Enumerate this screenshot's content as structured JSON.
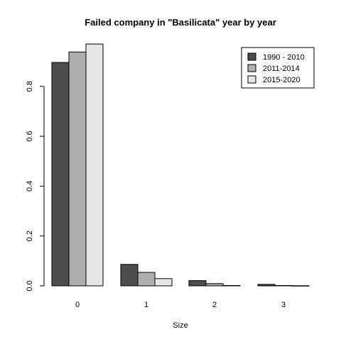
{
  "chart_data": {
    "type": "bar",
    "title": "Failed company in \"Basilicata\" year by year",
    "xlabel": "Size",
    "ylabel": "",
    "categories": [
      "0",
      "1",
      "2",
      "3"
    ],
    "yticks": [
      "0.0",
      "0.2",
      "0.4",
      "0.6",
      "0.8"
    ],
    "ylim": [
      0,
      0.97
    ],
    "grid": false,
    "legend_position": "top-right",
    "series": [
      {
        "name": "1990 - 2010",
        "color": "#4d4d4d",
        "values": [
          0.896,
          0.086,
          0.021,
          0.006
        ]
      },
      {
        "name": "2011-2014",
        "color": "#aeaeae",
        "values": [
          0.938,
          0.054,
          0.009,
          0.0015
        ]
      },
      {
        "name": "2015-2020",
        "color": "#e6e6e6",
        "values": [
          0.97,
          0.029,
          0.0015,
          0.0005
        ]
      }
    ]
  }
}
